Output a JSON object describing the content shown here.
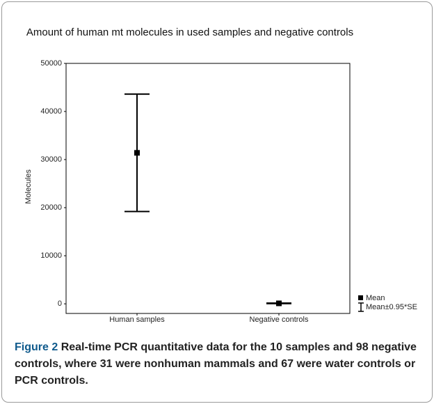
{
  "chart_data": {
    "type": "errorbar",
    "title": "Amount of human mt molecules in used samples and negative controls",
    "ylabel": "Molecules",
    "categories": [
      "Human samples",
      "Negative controls"
    ],
    "values": [
      31400,
      100
    ],
    "errors": [
      12200,
      60
    ],
    "color": "#000000",
    "ylim": [
      -2000,
      50000
    ],
    "yticks": [
      0,
      10000,
      20000,
      30000,
      40000,
      50000
    ],
    "legend": [
      "Mean",
      "Mean±0.95*SE"
    ],
    "legend_position": "right"
  },
  "caption": {
    "label": "Figure 2",
    "text": "Real-time PCR quantitative data for the 10 samples and 98 negative controls, where 31 were nonhuman mammals and 67 were water controls or PCR controls."
  }
}
